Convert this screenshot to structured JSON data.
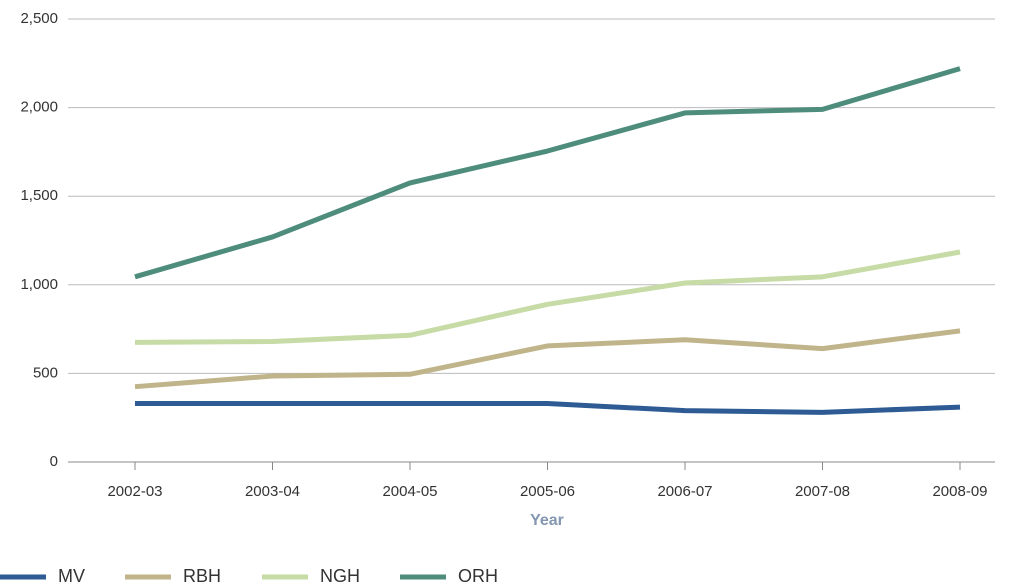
{
  "chart_data": {
    "type": "line",
    "x_label": "Year",
    "categories": [
      "2002-03",
      "2003-04",
      "2004-05",
      "2005-06",
      "2006-07",
      "2007-08",
      "2008-09"
    ],
    "series": [
      {
        "name": "MV",
        "color": "#2e5b94",
        "values": [
          330,
          330,
          330,
          330,
          290,
          280,
          310
        ]
      },
      {
        "name": "RBH",
        "color": "#c0b48a",
        "values": [
          425,
          485,
          495,
          655,
          690,
          640,
          740
        ]
      },
      {
        "name": "NGH",
        "color": "#c6dba5",
        "values": [
          675,
          680,
          715,
          890,
          1010,
          1045,
          1185
        ]
      },
      {
        "name": "ORH",
        "color": "#4e8c7c",
        "values": [
          1045,
          1270,
          1575,
          1755,
          1970,
          1990,
          2220
        ]
      }
    ],
    "ylim": [
      0,
      2500
    ],
    "yticks": [
      0,
      500,
      {
        "value": 1000,
        "label": "1,000"
      },
      {
        "value": 1500,
        "label": "1,500"
      },
      {
        "value": 2000,
        "label": "2,000"
      },
      {
        "value": 2500,
        "label": "2,500"
      }
    ],
    "grid": true,
    "legend": "bottom"
  }
}
